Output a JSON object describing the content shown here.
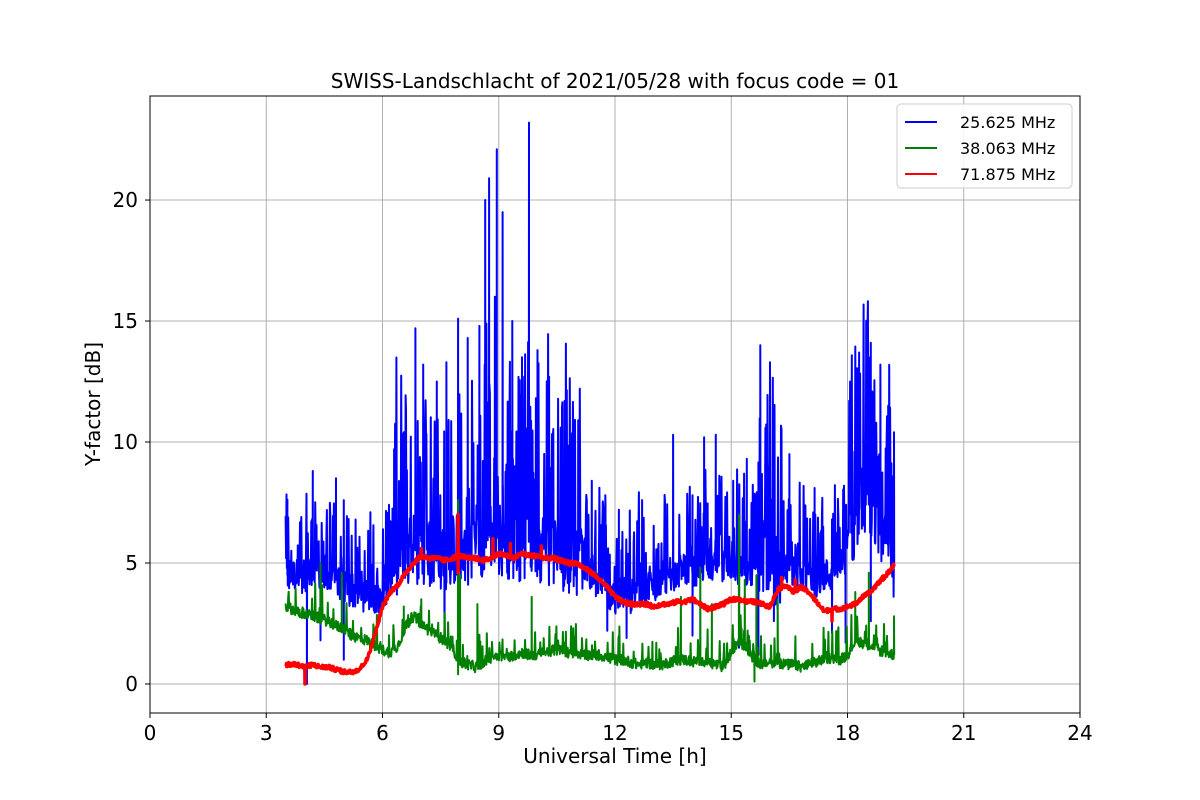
{
  "chart_data": {
    "type": "line",
    "title": "SWISS-Landschlacht of 2021/05/28 with focus code = 01",
    "xlabel": "Universal Time [h]",
    "ylabel": "Y-factor [dB]",
    "xlim": [
      0,
      24
    ],
    "ylim": [
      -1.2,
      24.3
    ],
    "xticks": [
      0,
      3,
      6,
      9,
      12,
      15,
      18,
      21,
      24
    ],
    "xtick_labels": [
      "0",
      "3",
      "6",
      "9",
      "12",
      "15",
      "18",
      "21",
      "24"
    ],
    "yticks": [
      0,
      5,
      10,
      15,
      20
    ],
    "ytick_labels": [
      "0",
      "5",
      "10",
      "15",
      "20"
    ],
    "grid": true,
    "legend_position": "top-right",
    "series": [
      {
        "name": "25.625 MHz",
        "color": "#0000ff",
        "x": [
          3.5,
          3.8,
          4.0,
          4.2,
          4.4,
          4.6,
          4.8,
          5.0,
          5.2,
          5.4,
          5.6,
          5.8,
          6.0,
          6.2,
          6.4,
          6.6,
          6.8,
          7.0,
          7.2,
          7.4,
          7.6,
          7.8,
          8.0,
          8.2,
          8.4,
          8.6,
          8.8,
          9.0,
          9.2,
          9.4,
          9.6,
          9.8,
          10.0,
          10.2,
          10.4,
          10.6,
          10.8,
          11.0,
          11.2,
          11.4,
          11.6,
          11.8,
          12.0,
          12.2,
          12.4,
          12.6,
          12.8,
          13.0,
          13.2,
          13.4,
          13.6,
          13.8,
          14.0,
          14.2,
          14.4,
          14.6,
          14.8,
          15.0,
          15.2,
          15.4,
          15.6,
          15.8,
          16.0,
          16.2,
          16.4,
          16.6,
          16.8,
          17.0,
          17.2,
          17.4,
          17.6,
          17.8,
          18.0,
          18.2,
          18.4,
          18.6,
          18.8,
          19.0,
          19.2
        ],
        "y": [
          4.5,
          4.5,
          4.4,
          4.5,
          4.3,
          4.2,
          4.3,
          4.0,
          3.8,
          3.7,
          3.6,
          3.6,
          3.7,
          4.0,
          5.0,
          5.3,
          5.5,
          5.6,
          5.5,
          5.4,
          5.3,
          5.5,
          5.7,
          5.6,
          5.8,
          6.0,
          6.2,
          6.0,
          5.9,
          5.8,
          5.7,
          5.9,
          5.8,
          5.6,
          5.5,
          5.4,
          5.3,
          5.2,
          4.9,
          4.5,
          4.1,
          3.8,
          3.6,
          3.5,
          3.6,
          3.8,
          4.0,
          4.1,
          4.3,
          4.5,
          4.6,
          4.8,
          4.6,
          4.9,
          5.0,
          4.7,
          4.8,
          5.0,
          4.8,
          4.6,
          4.7,
          5.3,
          5.0,
          4.6,
          4.8,
          4.6,
          4.5,
          4.4,
          4.3,
          4.5,
          4.5,
          4.7,
          5.5,
          7.0,
          7.5,
          7.2,
          6.8,
          6.0,
          5.0
        ],
        "peaks": [
          [
            3.55,
            6.1
          ],
          [
            4.2,
            8.8
          ],
          [
            4.8,
            8.5
          ],
          [
            5.0,
            7.6
          ],
          [
            6.3,
            9.7
          ],
          [
            6.55,
            10.4
          ],
          [
            6.85,
            14.7
          ],
          [
            7.05,
            13.2
          ],
          [
            7.4,
            12.5
          ],
          [
            7.65,
            13.3
          ],
          [
            7.95,
            15.1
          ],
          [
            8.2,
            14.3
          ],
          [
            8.5,
            14.8
          ],
          [
            8.65,
            20.0
          ],
          [
            8.75,
            20.9
          ],
          [
            8.9,
            16.0
          ],
          [
            8.95,
            22.1
          ],
          [
            9.1,
            19.5
          ],
          [
            9.35,
            15.0
          ],
          [
            9.6,
            13.5
          ],
          [
            9.78,
            23.2
          ],
          [
            10.0,
            13.8
          ],
          [
            10.3,
            12.7
          ],
          [
            10.7,
            11.7
          ],
          [
            11.05,
            10.9
          ],
          [
            11.4,
            8.4
          ],
          [
            11.75,
            7.8
          ],
          [
            12.1,
            7.2
          ],
          [
            12.7,
            7.6
          ],
          [
            13.5,
            10.3
          ],
          [
            14.0,
            7.8
          ],
          [
            14.3,
            10.2
          ],
          [
            14.6,
            10.3
          ],
          [
            15.05,
            8.4
          ],
          [
            15.4,
            9.3
          ],
          [
            15.75,
            14.0
          ],
          [
            16.0,
            13.3
          ],
          [
            16.1,
            11.5
          ],
          [
            16.5,
            9.5
          ],
          [
            17.15,
            8.1
          ],
          [
            17.6,
            6.8
          ],
          [
            18.1,
            12.5
          ],
          [
            18.3,
            13.7
          ],
          [
            18.6,
            14.1
          ],
          [
            18.85,
            13.2
          ],
          [
            19.05,
            11.5
          ],
          [
            19.2,
            10.4
          ]
        ],
        "dips": [
          [
            4.05,
            0.0
          ],
          [
            4.4,
            1.8
          ],
          [
            5.0,
            1.0
          ],
          [
            7.6,
            2.2
          ],
          [
            11.8,
            2.2
          ],
          [
            12.3,
            1.9
          ],
          [
            14.0,
            2.0
          ],
          [
            15.2,
            1.5
          ],
          [
            15.7,
            1.2
          ],
          [
            16.1,
            2.6
          ],
          [
            17.6,
            2.1
          ],
          [
            17.95,
            1.7
          ],
          [
            18.6,
            2.6
          ]
        ]
      },
      {
        "name": "38.063 MHz",
        "color": "#008000",
        "x": [
          3.5,
          3.8,
          4.0,
          4.2,
          4.4,
          4.6,
          4.8,
          5.0,
          5.2,
          5.4,
          5.6,
          5.8,
          6.0,
          6.2,
          6.4,
          6.6,
          6.8,
          7.0,
          7.2,
          7.4,
          7.6,
          7.8,
          8.0,
          8.2,
          8.4,
          8.6,
          8.8,
          9.0,
          9.2,
          9.4,
          9.6,
          9.8,
          10.0,
          10.2,
          10.4,
          10.6,
          10.8,
          11.0,
          11.2,
          11.4,
          11.6,
          11.8,
          12.0,
          12.2,
          12.4,
          12.6,
          12.8,
          13.0,
          13.2,
          13.4,
          13.6,
          13.8,
          14.0,
          14.2,
          14.4,
          14.6,
          14.8,
          15.0,
          15.2,
          15.4,
          15.6,
          15.8,
          16.0,
          16.2,
          16.4,
          16.6,
          16.8,
          17.0,
          17.2,
          17.4,
          17.6,
          17.8,
          18.0,
          18.2,
          18.4,
          18.6,
          18.8,
          19.0,
          19.2
        ],
        "y": [
          3.2,
          3.0,
          2.9,
          2.8,
          2.7,
          2.6,
          2.4,
          2.3,
          2.0,
          1.9,
          1.8,
          1.6,
          1.4,
          1.3,
          1.6,
          2.4,
          2.8,
          2.5,
          2.2,
          2.0,
          1.8,
          1.5,
          0.9,
          0.8,
          0.7,
          0.9,
          1.1,
          1.2,
          1.1,
          1.2,
          1.3,
          1.2,
          1.2,
          1.3,
          1.4,
          1.4,
          1.3,
          1.3,
          1.2,
          1.2,
          1.2,
          1.1,
          1.0,
          1.0,
          0.9,
          0.8,
          0.9,
          0.8,
          0.8,
          0.9,
          1.0,
          1.0,
          0.9,
          1.0,
          0.9,
          0.8,
          0.7,
          1.3,
          1.8,
          1.5,
          1.0,
          0.8,
          0.9,
          0.9,
          0.8,
          0.8,
          0.7,
          0.8,
          0.9,
          1.0,
          1.1,
          1.0,
          1.2,
          1.8,
          1.7,
          1.6,
          1.4,
          1.3,
          1.2
        ],
        "peaks": [
          [
            4.4,
            5.0
          ],
          [
            4.95,
            4.6
          ],
          [
            6.55,
            3.2
          ],
          [
            7.0,
            3.5
          ],
          [
            7.95,
            7.6
          ],
          [
            8.0,
            4.5
          ],
          [
            8.45,
            3.3
          ],
          [
            9.85,
            3.6
          ],
          [
            12.1,
            2.0
          ],
          [
            13.7,
            3.6
          ],
          [
            14.2,
            4.8
          ],
          [
            14.5,
            3.3
          ],
          [
            15.2,
            7.0
          ],
          [
            15.35,
            4.3
          ],
          [
            15.65,
            4.5
          ],
          [
            16.2,
            3.5
          ],
          [
            18.2,
            3.8
          ],
          [
            18.55,
            4.6
          ],
          [
            19.2,
            2.8
          ]
        ],
        "dips": [
          [
            7.95,
            0.4
          ],
          [
            15.6,
            0.1
          ]
        ]
      },
      {
        "name": "71.875 MHz",
        "color": "#ff0000",
        "x": [
          3.5,
          3.8,
          4.0,
          4.2,
          4.4,
          4.6,
          4.8,
          5.0,
          5.2,
          5.4,
          5.6,
          5.8,
          6.0,
          6.2,
          6.4,
          6.6,
          6.8,
          7.0,
          7.2,
          7.4,
          7.6,
          7.8,
          8.0,
          8.2,
          8.4,
          8.6,
          8.8,
          9.0,
          9.2,
          9.4,
          9.6,
          9.8,
          10.0,
          10.2,
          10.4,
          10.6,
          10.8,
          11.0,
          11.2,
          11.4,
          11.6,
          11.8,
          12.0,
          12.2,
          12.4,
          12.6,
          12.8,
          13.0,
          13.2,
          13.4,
          13.6,
          13.8,
          14.0,
          14.2,
          14.4,
          14.6,
          14.8,
          15.0,
          15.2,
          15.4,
          15.6,
          15.8,
          16.0,
          16.2,
          16.4,
          16.6,
          16.8,
          17.0,
          17.2,
          17.4,
          17.6,
          17.8,
          18.0,
          18.2,
          18.4,
          18.6,
          18.8,
          19.0,
          19.2
        ],
        "y": [
          0.8,
          0.8,
          0.7,
          0.8,
          0.7,
          0.7,
          0.6,
          0.5,
          0.5,
          0.6,
          1.0,
          2.0,
          3.2,
          3.8,
          4.1,
          4.6,
          5.0,
          5.3,
          5.2,
          5.2,
          5.1,
          5.2,
          5.3,
          5.2,
          5.2,
          5.1,
          5.2,
          5.4,
          5.3,
          5.2,
          5.4,
          5.3,
          5.3,
          5.2,
          5.2,
          5.1,
          5.0,
          5.0,
          4.8,
          4.6,
          4.3,
          4.0,
          3.6,
          3.4,
          3.3,
          3.3,
          3.3,
          3.2,
          3.3,
          3.3,
          3.4,
          3.4,
          3.5,
          3.3,
          3.1,
          3.2,
          3.3,
          3.5,
          3.5,
          3.4,
          3.4,
          3.3,
          3.2,
          3.9,
          4.1,
          3.8,
          4.0,
          3.8,
          3.4,
          3.0,
          3.1,
          3.1,
          3.2,
          3.3,
          3.6,
          3.8,
          4.2,
          4.5,
          4.9
        ],
        "peaks": [
          [
            7.0,
            5.6
          ],
          [
            7.95,
            7.0
          ],
          [
            8.85,
            6.0
          ],
          [
            9.3,
            5.8
          ],
          [
            10.1,
            5.7
          ],
          [
            16.3,
            4.4
          ],
          [
            16.65,
            4.3
          ]
        ],
        "dips": [
          [
            4.0,
            0.0
          ],
          [
            7.95,
            4.6
          ],
          [
            17.6,
            2.6
          ]
        ]
      }
    ]
  }
}
